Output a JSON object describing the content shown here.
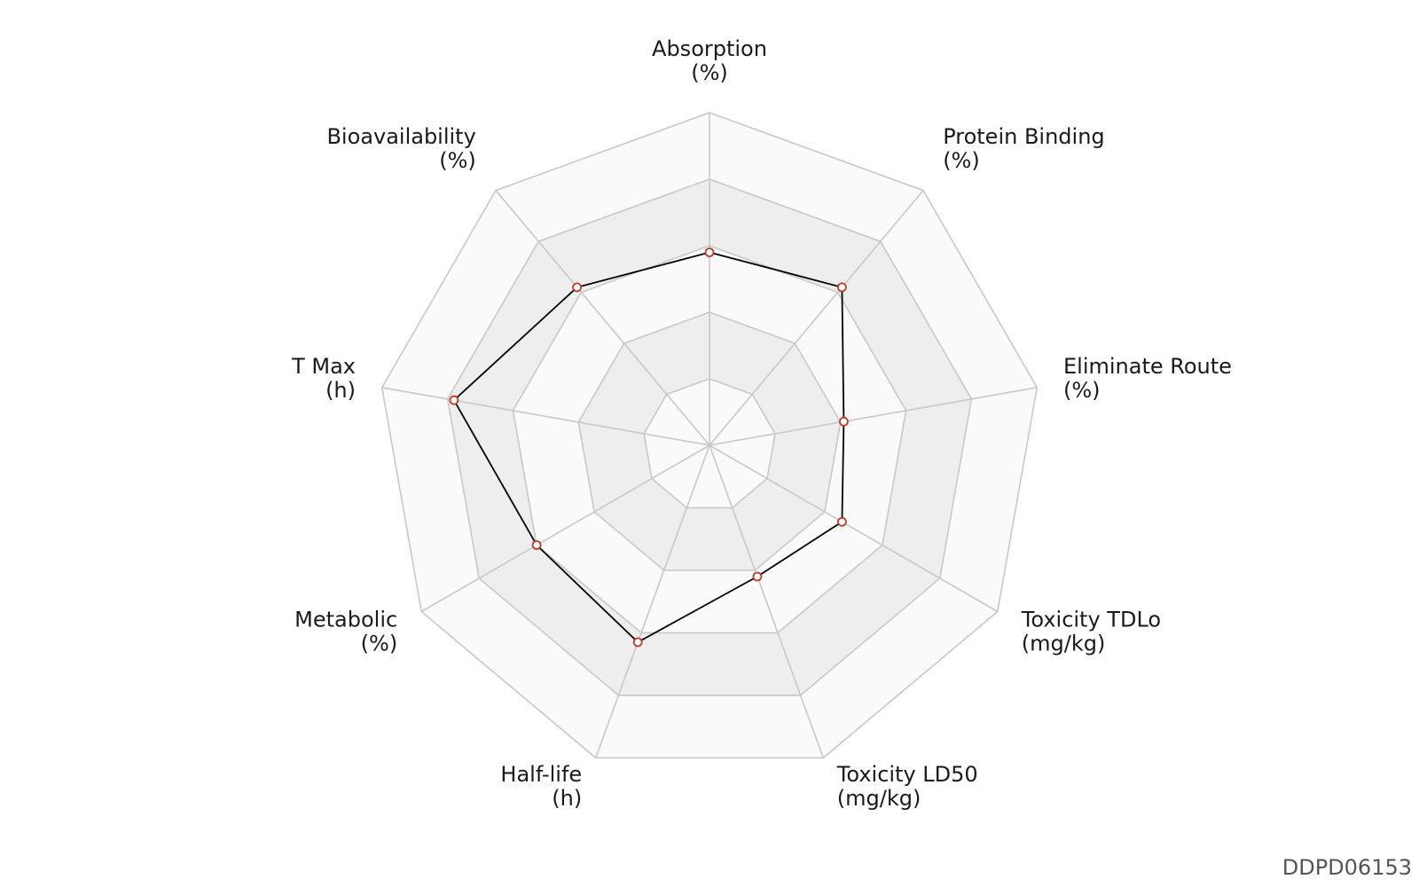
{
  "chart_data": {
    "type": "radar",
    "axes": [
      {
        "name": "Absorption",
        "unit": "(%)"
      },
      {
        "name": "Protein Binding",
        "unit": "(%)"
      },
      {
        "name": "Eliminate Route",
        "unit": "(%)"
      },
      {
        "name": "Toxicity TDLo",
        "unit": "(mg/kg)"
      },
      {
        "name": "Toxicity LD50",
        "unit": "(mg/kg)"
      },
      {
        "name": "Half-life",
        "unit": "(h)"
      },
      {
        "name": "Metabolic",
        "unit": "(%)"
      },
      {
        "name": "T Max",
        "unit": "(h)"
      },
      {
        "name": "Bioavailability",
        "unit": "(%)"
      }
    ],
    "rings": 5,
    "range": [
      0,
      1
    ],
    "values": [
      0.58,
      0.62,
      0.41,
      0.46,
      0.42,
      0.63,
      0.6,
      0.78,
      0.62
    ],
    "colors": {
      "band_dark": "#eeeeee",
      "band_light": "#fafafa",
      "grid": "#c8c8c8",
      "line": "#000000",
      "marker_edge": "#c0392b",
      "marker_fill": "#ffffff"
    }
  },
  "footer": {
    "id": "DDPD06153"
  }
}
